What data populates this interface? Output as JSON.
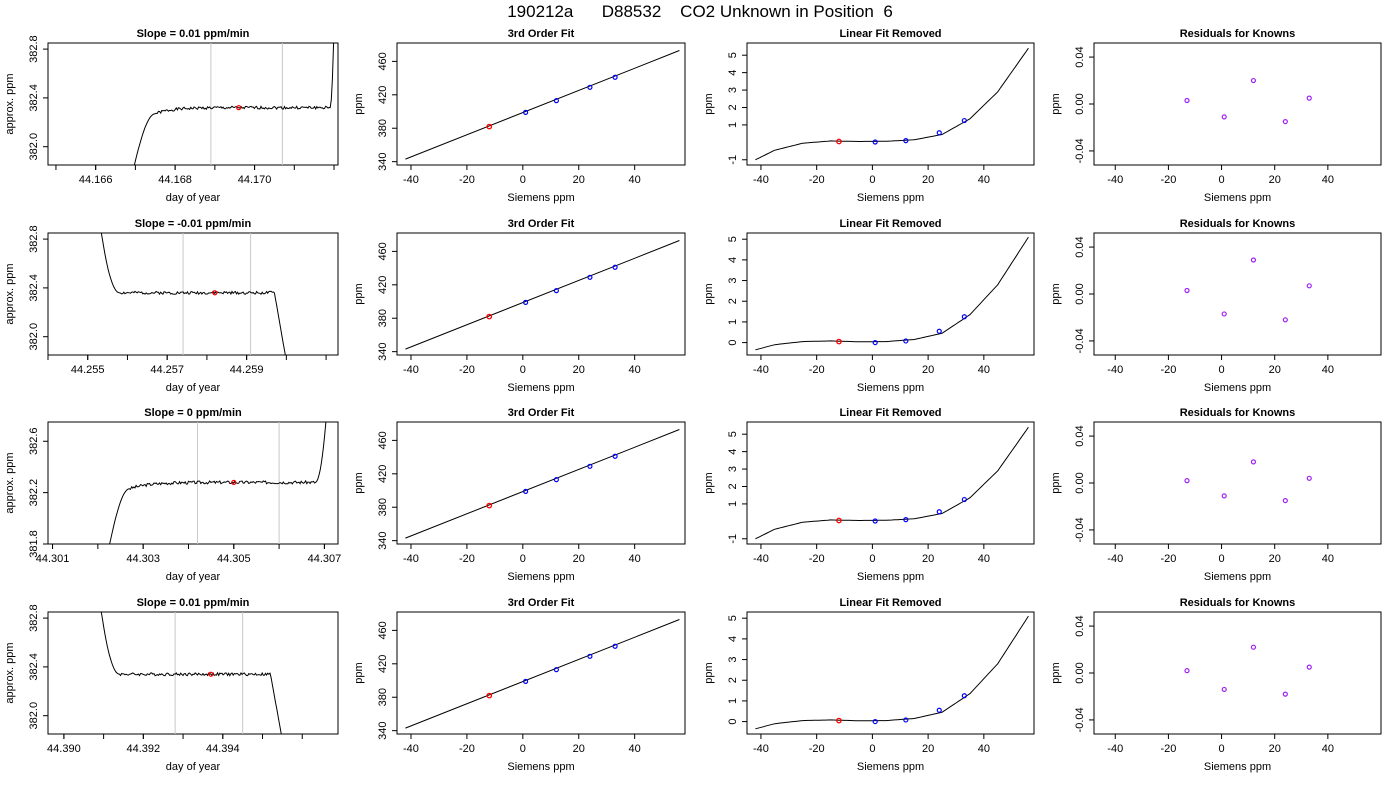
{
  "page": {
    "title": "190212a      D88532    CO2 Unknown in Position  6"
  },
  "colors": {
    "trace": "#000000",
    "window_lines": "#c8c8c8",
    "unknown_point": "#ff0000",
    "known_point": "#0000ff",
    "residual_point": "#a020f0"
  },
  "chart_data": [
    {
      "type": "line",
      "panel": "timeseries-1",
      "title": "Slope =  0.01  ppm/min",
      "xlabel": "day of year",
      "ylabel": "approx. ppm",
      "xlim": [
        44.1648,
        44.1721
      ],
      "ylim": [
        381.85,
        382.85
      ],
      "xticks": [
        44.166,
        44.168,
        44.17
      ],
      "xtick_labels": [
        "44.166",
        "44.168",
        "44.170"
      ],
      "yticks": [
        382.0,
        382.4,
        382.8
      ],
      "ytick_labels": [
        "382.0",
        "382.4",
        "382.8"
      ],
      "window": [
        44.1689,
        44.1707
      ],
      "mean_point": [
        44.1696,
        382.32
      ],
      "trace": {
        "start": 44.1669,
        "rise_end": 44.1675,
        "plateau": 382.32,
        "shape": "rise-fall",
        "drop_at": 44.1719,
        "end_value": 383.2,
        "noise": 0.012,
        "seed": 1
      }
    },
    {
      "type": "line",
      "panel": "timeseries-2",
      "title": "Slope =  -0.01  ppm/min",
      "xlabel": "day of year",
      "ylabel": "approx. ppm",
      "xlim": [
        44.254,
        44.2613
      ],
      "ylim": [
        381.85,
        382.85
      ],
      "xticks": [
        44.255,
        44.257,
        44.259
      ],
      "xtick_labels": [
        "44.255",
        "44.257",
        "44.259"
      ],
      "yticks": [
        382.0,
        382.4,
        382.8
      ],
      "ytick_labels": [
        "382.0",
        "382.4",
        "382.8"
      ],
      "window": [
        44.2574,
        44.2591
      ],
      "mean_point": [
        44.2582,
        382.36
      ],
      "trace": {
        "start": 44.2553,
        "rise_end": 44.2558,
        "plateau": 382.36,
        "shape": "fall-drop",
        "drop_at": 44.2597,
        "start_value": 382.95,
        "end_value": 381.8,
        "noise": 0.012,
        "seed": 2
      }
    },
    {
      "type": "line",
      "panel": "timeseries-3",
      "title": "Slope =  0  ppm/min",
      "xlabel": "day of year",
      "ylabel": "approx. ppm",
      "xlim": [
        44.3009,
        44.3073
      ],
      "ylim": [
        381.8,
        382.75
      ],
      "xticks": [
        44.301,
        44.303,
        44.305,
        44.307
      ],
      "xtick_labels": [
        "44.301",
        "44.303",
        "44.305",
        "44.307"
      ],
      "yticks": [
        381.8,
        382.2,
        382.6
      ],
      "ytick_labels": [
        "381.8",
        "382.2",
        "382.6"
      ],
      "window": [
        44.3042,
        44.306
      ],
      "mean_point": [
        44.305,
        382.28
      ],
      "trace": {
        "start": 44.3022,
        "rise_end": 44.3027,
        "plateau": 382.28,
        "shape": "rise-fall",
        "drop_at": 44.3068,
        "end_value": 383.0,
        "noise": 0.012,
        "seed": 3
      }
    },
    {
      "type": "line",
      "panel": "timeseries-4",
      "title": "Slope =  0.01  ppm/min",
      "xlabel": "day of year",
      "ylabel": "approx. ppm",
      "xlim": [
        44.3896,
        44.3969
      ],
      "ylim": [
        381.85,
        382.85
      ],
      "xticks": [
        44.39,
        44.392,
        44.394
      ],
      "xtick_labels": [
        "44.390",
        "44.392",
        "44.394"
      ],
      "yticks": [
        382.0,
        382.4,
        382.8
      ],
      "ytick_labels": [
        "382.0",
        "382.4",
        "382.8"
      ],
      "window": [
        44.3928,
        44.3945
      ],
      "mean_point": [
        44.3937,
        382.34
      ],
      "trace": {
        "start": 44.3909,
        "rise_end": 44.3914,
        "plateau": 382.34,
        "shape": "fall-drop",
        "drop_at": 44.3952,
        "start_value": 382.95,
        "end_value": 381.8,
        "noise": 0.012,
        "seed": 4
      }
    },
    {
      "type": "scatter",
      "panel": "fit-1",
      "title": "3rd Order Fit",
      "xlabel": "Siemens ppm",
      "ylabel": "ppm",
      "xlim": [
        -45,
        58
      ],
      "ylim": [
        336,
        482
      ],
      "xticks": [
        -40,
        -20,
        0,
        20,
        40
      ],
      "xtick_labels": [
        "-40",
        "-20",
        "0",
        "20",
        "40"
      ],
      "yticks": [
        340,
        380,
        420,
        460
      ],
      "ytick_labels": [
        "340",
        "380",
        "420",
        "460"
      ],
      "line": {
        "x": [
          -42,
          56
        ],
        "y": [
          343,
          473
        ]
      },
      "knowns": {
        "x": [
          1,
          12,
          24,
          33
        ],
        "y": [
          399,
          413,
          429,
          441
        ]
      },
      "unknown": {
        "x": [
          -12
        ],
        "y": [
          382
        ]
      }
    },
    {
      "type": "scatter",
      "panel": "fit-2",
      "title": "3rd Order Fit",
      "xlabel": "Siemens ppm",
      "ylabel": "ppm",
      "xlim": [
        -45,
        58
      ],
      "ylim": [
        336,
        482
      ],
      "xticks": [
        -40,
        -20,
        0,
        20,
        40
      ],
      "xtick_labels": [
        "-40",
        "-20",
        "0",
        "20",
        "40"
      ],
      "yticks": [
        340,
        380,
        420,
        460
      ],
      "ytick_labels": [
        "340",
        "380",
        "420",
        "460"
      ],
      "line": {
        "x": [
          -42,
          56
        ],
        "y": [
          343,
          473
        ]
      },
      "knowns": {
        "x": [
          1,
          12,
          24,
          33
        ],
        "y": [
          399,
          413,
          429,
          441
        ]
      },
      "unknown": {
        "x": [
          -12
        ],
        "y": [
          382
        ]
      }
    },
    {
      "type": "scatter",
      "panel": "fit-3",
      "title": "3rd Order Fit",
      "xlabel": "Siemens ppm",
      "ylabel": "ppm",
      "xlim": [
        -45,
        58
      ],
      "ylim": [
        336,
        482
      ],
      "xticks": [
        -40,
        -20,
        0,
        20,
        40
      ],
      "xtick_labels": [
        "-40",
        "-20",
        "0",
        "20",
        "40"
      ],
      "yticks": [
        340,
        380,
        420,
        460
      ],
      "ytick_labels": [
        "340",
        "380",
        "420",
        "460"
      ],
      "line": {
        "x": [
          -42,
          56
        ],
        "y": [
          343,
          473
        ]
      },
      "knowns": {
        "x": [
          1,
          12,
          24,
          33
        ],
        "y": [
          399,
          413,
          429,
          441
        ]
      },
      "unknown": {
        "x": [
          -12
        ],
        "y": [
          382
        ]
      }
    },
    {
      "type": "scatter",
      "panel": "fit-4",
      "title": "3rd Order Fit",
      "xlabel": "Siemens ppm",
      "ylabel": "ppm",
      "xlim": [
        -45,
        58
      ],
      "ylim": [
        336,
        482
      ],
      "xticks": [
        -40,
        -20,
        0,
        20,
        40
      ],
      "xtick_labels": [
        "-40",
        "-20",
        "0",
        "20",
        "40"
      ],
      "yticks": [
        340,
        380,
        420,
        460
      ],
      "ytick_labels": [
        "340",
        "380",
        "420",
        "460"
      ],
      "line": {
        "x": [
          -42,
          56
        ],
        "y": [
          343,
          473
        ]
      },
      "knowns": {
        "x": [
          1,
          12,
          24,
          33
        ],
        "y": [
          399,
          413,
          429,
          441
        ]
      },
      "unknown": {
        "x": [
          -12
        ],
        "y": [
          382
        ]
      }
    },
    {
      "type": "scatter",
      "panel": "linear-removed-1",
      "title": "Linear Fit Removed",
      "xlabel": "Siemens ppm",
      "ylabel": "ppm",
      "xlim": [
        -45,
        58
      ],
      "ylim": [
        -1.3,
        5.7
      ],
      "xticks": [
        -40,
        -20,
        0,
        20,
        40
      ],
      "xtick_labels": [
        "-40",
        "-20",
        "0",
        "20",
        "40"
      ],
      "yticks": [
        -1,
        1,
        2,
        3,
        4,
        5
      ],
      "ytick_labels": [
        "-1",
        "1",
        "2",
        "3",
        "4",
        "5"
      ],
      "curve": {
        "x": [
          -42,
          -35,
          -25,
          -15,
          -5,
          5,
          15,
          25,
          35,
          45,
          56
        ],
        "y": [
          -1.0,
          -0.45,
          -0.05,
          0.08,
          0.05,
          0.06,
          0.15,
          0.45,
          1.35,
          2.9,
          5.4
        ]
      },
      "knowns": {
        "x": [
          1,
          12,
          24,
          33
        ],
        "y": [
          0.02,
          0.1,
          0.55,
          1.25
        ]
      },
      "unknown": {
        "x": [
          -12
        ],
        "y": [
          0.05
        ]
      }
    },
    {
      "type": "scatter",
      "panel": "linear-removed-2",
      "title": "Linear Fit Removed",
      "xlabel": "Siemens ppm",
      "ylabel": "ppm",
      "xlim": [
        -45,
        58
      ],
      "ylim": [
        -0.6,
        5.3
      ],
      "xticks": [
        -40,
        -20,
        0,
        20,
        40
      ],
      "xtick_labels": [
        "-40",
        "-20",
        "0",
        "20",
        "40"
      ],
      "yticks": [
        0,
        1,
        2,
        3,
        4,
        5
      ],
      "ytick_labels": [
        "0",
        "1",
        "2",
        "3",
        "4",
        "5"
      ],
      "curve": {
        "x": [
          -42,
          -35,
          -25,
          -15,
          -5,
          5,
          15,
          25,
          35,
          45,
          56
        ],
        "y": [
          -0.35,
          -0.1,
          0.05,
          0.08,
          0.04,
          0.05,
          0.15,
          0.45,
          1.35,
          2.8,
          5.1
        ]
      },
      "knowns": {
        "x": [
          1,
          12,
          24,
          33
        ],
        "y": [
          0.0,
          0.08,
          0.55,
          1.25
        ]
      },
      "unknown": {
        "x": [
          -12
        ],
        "y": [
          0.05
        ]
      }
    },
    {
      "type": "scatter",
      "panel": "linear-removed-3",
      "title": "Linear Fit Removed",
      "xlabel": "Siemens ppm",
      "ylabel": "ppm",
      "xlim": [
        -45,
        58
      ],
      "ylim": [
        -1.3,
        5.7
      ],
      "xticks": [
        -40,
        -20,
        0,
        20,
        40
      ],
      "xtick_labels": [
        "-40",
        "-20",
        "0",
        "20",
        "40"
      ],
      "yticks": [
        -1,
        1,
        2,
        3,
        4,
        5
      ],
      "ytick_labels": [
        "-1",
        "1",
        "2",
        "3",
        "4",
        "5"
      ],
      "curve": {
        "x": [
          -42,
          -35,
          -25,
          -15,
          -5,
          5,
          15,
          25,
          35,
          45,
          56
        ],
        "y": [
          -1.0,
          -0.45,
          -0.05,
          0.08,
          0.05,
          0.06,
          0.15,
          0.45,
          1.35,
          2.9,
          5.4
        ]
      },
      "knowns": {
        "x": [
          1,
          12,
          24,
          33
        ],
        "y": [
          0.02,
          0.1,
          0.55,
          1.25
        ]
      },
      "unknown": {
        "x": [
          -12
        ],
        "y": [
          0.05
        ]
      }
    },
    {
      "type": "scatter",
      "panel": "linear-removed-4",
      "title": "Linear Fit Removed",
      "xlabel": "Siemens ppm",
      "ylabel": "ppm",
      "xlim": [
        -45,
        58
      ],
      "ylim": [
        -0.6,
        5.3
      ],
      "xticks": [
        -40,
        -20,
        0,
        20,
        40
      ],
      "xtick_labels": [
        "-40",
        "-20",
        "0",
        "20",
        "40"
      ],
      "yticks": [
        0,
        1,
        2,
        3,
        4,
        5
      ],
      "ytick_labels": [
        "0",
        "1",
        "2",
        "3",
        "4",
        "5"
      ],
      "curve": {
        "x": [
          -42,
          -35,
          -25,
          -15,
          -5,
          5,
          15,
          25,
          35,
          45,
          56
        ],
        "y": [
          -0.35,
          -0.1,
          0.05,
          0.08,
          0.04,
          0.05,
          0.15,
          0.45,
          1.35,
          2.8,
          5.1
        ]
      },
      "knowns": {
        "x": [
          1,
          12,
          24,
          33
        ],
        "y": [
          0.0,
          0.08,
          0.55,
          1.25
        ]
      },
      "unknown": {
        "x": [
          -12
        ],
        "y": [
          0.05
        ]
      }
    },
    {
      "type": "scatter",
      "panel": "residuals-1",
      "title": "Residuals for Knowns",
      "xlabel": "Siemens ppm",
      "ylabel": "ppm",
      "xlim": [
        -48,
        60
      ],
      "ylim": [
        -0.052,
        0.052
      ],
      "xticks": [
        -40,
        -20,
        0,
        20,
        40
      ],
      "xtick_labels": [
        "-40",
        "-20",
        "0",
        "20",
        "40"
      ],
      "yticks": [
        -0.04,
        0.0,
        0.04
      ],
      "ytick_labels": [
        "-0.04",
        "0.00",
        "0.04"
      ],
      "points": {
        "x": [
          -13,
          1,
          12,
          24,
          33
        ],
        "y": [
          0.003,
          -0.011,
          0.02,
          -0.015,
          0.005
        ]
      }
    },
    {
      "type": "scatter",
      "panel": "residuals-2",
      "title": "Residuals for Knowns",
      "xlabel": "Siemens ppm",
      "ylabel": "ppm",
      "xlim": [
        -48,
        60
      ],
      "ylim": [
        -0.052,
        0.052
      ],
      "xticks": [
        -40,
        -20,
        0,
        20,
        40
      ],
      "xtick_labels": [
        "-40",
        "-20",
        "0",
        "20",
        "40"
      ],
      "yticks": [
        -0.04,
        0.0,
        0.04
      ],
      "ytick_labels": [
        "-0.04",
        "0.00",
        "0.04"
      ],
      "points": {
        "x": [
          -13,
          1,
          12,
          24,
          33
        ],
        "y": [
          0.003,
          -0.017,
          0.029,
          -0.022,
          0.007
        ]
      }
    },
    {
      "type": "scatter",
      "panel": "residuals-3",
      "title": "Residuals for Knowns",
      "xlabel": "Siemens ppm",
      "ylabel": "ppm",
      "xlim": [
        -48,
        60
      ],
      "ylim": [
        -0.052,
        0.052
      ],
      "xticks": [
        -40,
        -20,
        0,
        20,
        40
      ],
      "xtick_labels": [
        "-40",
        "-20",
        "0",
        "20",
        "40"
      ],
      "yticks": [
        -0.04,
        0.0,
        0.04
      ],
      "ytick_labels": [
        "-0.04",
        "0.00",
        "0.04"
      ],
      "points": {
        "x": [
          -13,
          1,
          12,
          24,
          33
        ],
        "y": [
          0.002,
          -0.011,
          0.018,
          -0.015,
          0.004
        ]
      }
    },
    {
      "type": "scatter",
      "panel": "residuals-4",
      "title": "Residuals for Knowns",
      "xlabel": "Siemens ppm",
      "ylabel": "ppm",
      "xlim": [
        -48,
        60
      ],
      "ylim": [
        -0.052,
        0.052
      ],
      "xticks": [
        -40,
        -20,
        0,
        20,
        40
      ],
      "xtick_labels": [
        "-40",
        "-20",
        "0",
        "20",
        "40"
      ],
      "yticks": [
        -0.04,
        0.0,
        0.04
      ],
      "ytick_labels": [
        "-0.04",
        "0.00",
        "0.04"
      ],
      "points": {
        "x": [
          -13,
          1,
          12,
          24,
          33
        ],
        "y": [
          0.002,
          -0.014,
          0.022,
          -0.018,
          0.005
        ]
      }
    }
  ]
}
